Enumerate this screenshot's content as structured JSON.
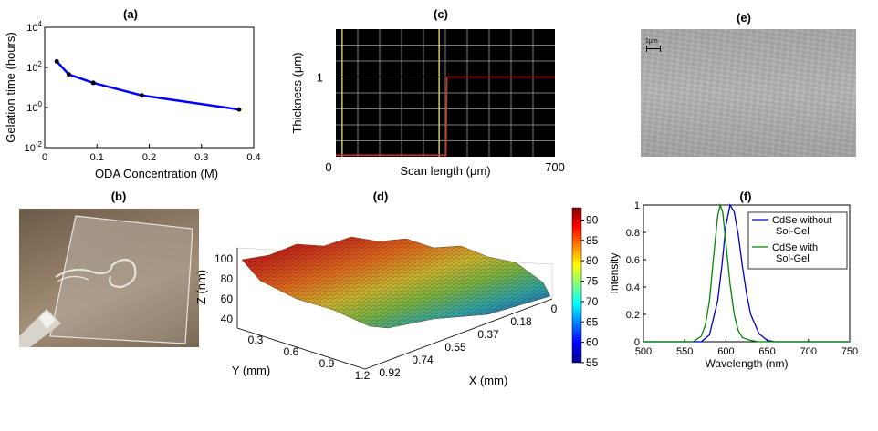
{
  "panels": {
    "a": "(a)",
    "b": "(b)",
    "c": "(c)",
    "d": "(d)",
    "e": "(e)",
    "f": "(f)"
  },
  "scale_bar": "1μm",
  "chart_data": [
    {
      "id": "a",
      "type": "line",
      "title": "(a)",
      "xlabel": "ODA Concentration (M)",
      "ylabel": "Gelation time (hours)",
      "yscale": "log",
      "xlim": [
        0,
        0.4
      ],
      "ylim": [
        0.01,
        10000
      ],
      "xticks": [
        "0",
        "0.1",
        "0.2",
        "0.3",
        "0.4"
      ],
      "yticks": [
        "10^-2",
        "10^0",
        "10^2",
        "10^4"
      ],
      "color": "#0000ff",
      "x": [
        0.023,
        0.046,
        0.093,
        0.186,
        0.372
      ],
      "y": [
        200,
        45,
        17,
        4,
        0.8
      ]
    },
    {
      "id": "c",
      "type": "line",
      "title": "(c)",
      "xlabel": "Scan length (μm)",
      "ylabel": "Thickness (μm)",
      "xlim": [
        0,
        700
      ],
      "ylim": [
        0,
        1.6
      ],
      "xticks": [
        "0",
        "700"
      ],
      "yticks": [
        "1"
      ],
      "background": "#000000",
      "line_color": "#d03030",
      "cursor_color": "#c8c870",
      "cursors_x": [
        20,
        330
      ],
      "x": [
        0,
        330,
        352,
        355,
        700
      ],
      "y": [
        0.02,
        0.02,
        0.02,
        1.0,
        1.0
      ]
    },
    {
      "id": "d",
      "type": "surface",
      "title": "(d)",
      "xlabel": "X (mm)",
      "ylabel": "Y (mm)",
      "zlabel": "Z (nm)",
      "xticks": [
        "0.92",
        "0.74",
        "0.55",
        "0.37",
        "0.18",
        "0"
      ],
      "yticks": [
        "0.3",
        "0.6",
        "0.9",
        "1.2"
      ],
      "zticks": [
        "40",
        "60",
        "80",
        "100"
      ],
      "colorbar_ticks": [
        "55",
        "60",
        "65",
        "70",
        "75",
        "80",
        "85",
        "90"
      ],
      "zlim": [
        55,
        93
      ]
    },
    {
      "id": "f",
      "type": "line",
      "title": "(f)",
      "xlabel": "Wavelength (nm)",
      "ylabel": "Intensity",
      "xlim": [
        500,
        750
      ],
      "ylim": [
        0,
        1
      ],
      "xticks": [
        "500",
        "550",
        "600",
        "650",
        "700",
        "750"
      ],
      "yticks": [
        "0",
        "0.2",
        "0.4",
        "0.6",
        "0.8",
        "1"
      ],
      "legend_position": "top-right",
      "series": [
        {
          "name": "CdSe without Sol-Gel",
          "legend_lines": [
            "CdSe without",
            "Sol-Gel"
          ],
          "color": "#0000cc",
          "x": [
            500,
            570,
            580,
            590,
            595,
            600,
            605,
            610,
            615,
            620,
            625,
            630,
            640,
            650,
            660,
            750
          ],
          "y": [
            0.0,
            0.0,
            0.05,
            0.3,
            0.55,
            0.85,
            1.0,
            0.95,
            0.78,
            0.55,
            0.35,
            0.2,
            0.06,
            0.01,
            0.0,
            0.0
          ]
        },
        {
          "name": "CdSe with Sol-Gel",
          "legend_lines": [
            "CdSe with",
            "Sol-Gel"
          ],
          "color": "#008800",
          "x": [
            500,
            560,
            570,
            575,
            580,
            585,
            590,
            593,
            596,
            600,
            605,
            610,
            615,
            620,
            630,
            640,
            750
          ],
          "y": [
            0.0,
            0.0,
            0.04,
            0.12,
            0.3,
            0.62,
            0.92,
            1.0,
            0.95,
            0.72,
            0.42,
            0.2,
            0.08,
            0.03,
            0.01,
            0.0,
            0.0
          ]
        }
      ]
    }
  ]
}
